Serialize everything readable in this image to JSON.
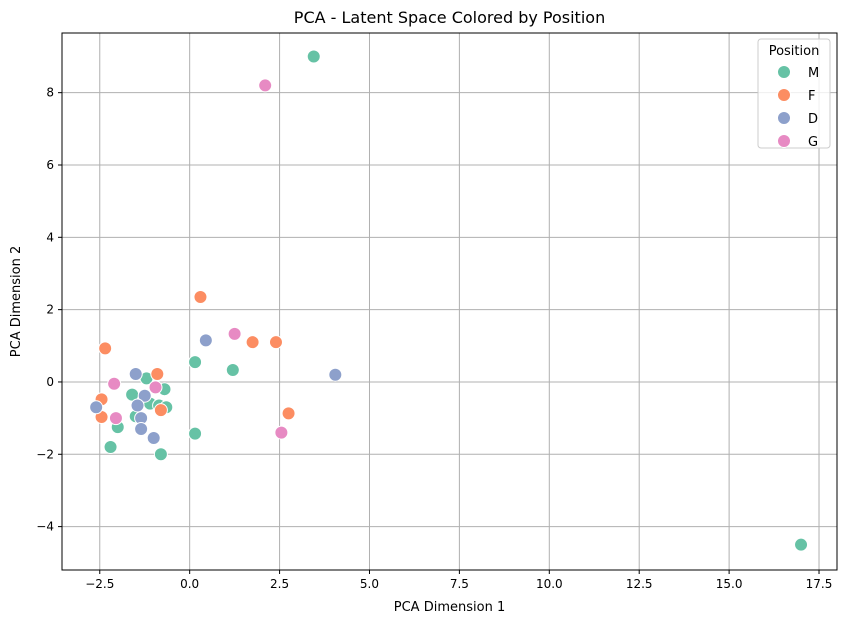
{
  "chart_data": {
    "type": "scatter",
    "title": "PCA - Latent Space Colored by Position",
    "xlabel": "PCA Dimension 1",
    "ylabel": "PCA Dimension 2",
    "xlim": [
      -3.55,
      18.0
    ],
    "ylim": [
      -5.2,
      9.65
    ],
    "x_ticks": [
      -2.5,
      0.0,
      2.5,
      5.0,
      7.5,
      10.0,
      12.5,
      15.0,
      17.5
    ],
    "x_tick_labels": [
      "−2.5",
      "0.0",
      "2.5",
      "5.0",
      "7.5",
      "10.0",
      "12.5",
      "15.0",
      "17.5"
    ],
    "y_ticks": [
      -4,
      -2,
      0,
      2,
      4,
      6,
      8
    ],
    "y_tick_labels": [
      "−4",
      "−2",
      "0",
      "2",
      "4",
      "6",
      "8"
    ],
    "grid": true,
    "legend": {
      "title": "Position",
      "placement": "top-right"
    },
    "series": [
      {
        "name": "M",
        "color": "#66c2a5",
        "points": [
          [
            3.45,
            9.0
          ],
          [
            17.0,
            -4.5
          ],
          [
            0.15,
            0.55
          ],
          [
            1.2,
            0.33
          ],
          [
            0.15,
            -1.43
          ],
          [
            -0.8,
            -2.0
          ],
          [
            -2.2,
            -1.8
          ],
          [
            -2.0,
            -1.25
          ],
          [
            -1.6,
            -0.35
          ],
          [
            -1.2,
            0.1
          ],
          [
            -0.7,
            -0.2
          ],
          [
            -1.5,
            -0.95
          ],
          [
            -1.1,
            -0.6
          ],
          [
            -0.85,
            -0.65
          ],
          [
            -0.65,
            -0.7
          ]
        ]
      },
      {
        "name": "F",
        "color": "#fc8d62",
        "points": [
          [
            0.3,
            2.35
          ],
          [
            -2.35,
            0.93
          ],
          [
            1.75,
            1.1
          ],
          [
            2.4,
            1.1
          ],
          [
            2.75,
            -0.87
          ],
          [
            -2.45,
            -0.48
          ],
          [
            -2.45,
            -0.97
          ],
          [
            -0.9,
            0.22
          ],
          [
            -0.8,
            -0.78
          ]
        ]
      },
      {
        "name": "D",
        "color": "#8da0cb",
        "points": [
          [
            0.45,
            1.15
          ],
          [
            4.05,
            0.2
          ],
          [
            -1.5,
            0.22
          ],
          [
            -1.25,
            -0.38
          ],
          [
            -1.45,
            -0.65
          ],
          [
            -1.35,
            -1.0
          ],
          [
            -1.35,
            -1.3
          ],
          [
            -1.0,
            -1.55
          ],
          [
            -2.6,
            -0.7
          ]
        ]
      },
      {
        "name": "G",
        "color": "#e78ac3",
        "points": [
          [
            2.1,
            8.2
          ],
          [
            1.25,
            1.33
          ],
          [
            2.55,
            -1.4
          ],
          [
            -2.1,
            -0.05
          ],
          [
            -2.05,
            -1.0
          ],
          [
            -0.95,
            -0.15
          ]
        ]
      }
    ]
  }
}
